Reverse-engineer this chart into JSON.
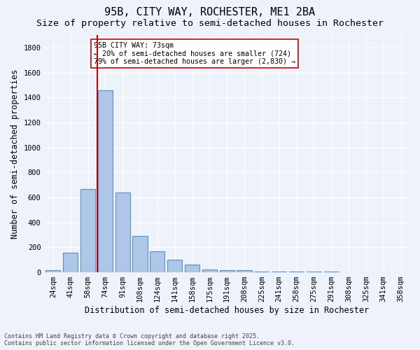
{
  "title1": "95B, CITY WAY, ROCHESTER, ME1 2BA",
  "title2": "Size of property relative to semi-detached houses in Rochester",
  "xlabel": "Distribution of semi-detached houses by size in Rochester",
  "ylabel": "Number of semi-detached properties",
  "categories": [
    "24sqm",
    "41sqm",
    "58sqm",
    "74sqm",
    "91sqm",
    "108sqm",
    "124sqm",
    "141sqm",
    "158sqm",
    "175sqm",
    "191sqm",
    "208sqm",
    "225sqm",
    "241sqm",
    "258sqm",
    "275sqm",
    "291sqm",
    "308sqm",
    "325sqm",
    "341sqm",
    "358sqm"
  ],
  "values": [
    20,
    160,
    670,
    1460,
    640,
    290,
    170,
    100,
    60,
    25,
    20,
    15,
    5,
    5,
    5,
    5,
    5,
    2,
    2,
    2,
    2
  ],
  "bar_color": "#aec6e8",
  "bar_edge_color": "#5a8fc0",
  "vline_color": "#cc0000",
  "vline_label": "95B CITY WAY: 73sqm",
  "annotation_smaller": "← 20% of semi-detached houses are smaller (724)",
  "annotation_larger": "79% of semi-detached houses are larger (2,830) →",
  "ylim": [
    0,
    1900
  ],
  "yticks": [
    0,
    200,
    400,
    600,
    800,
    1000,
    1200,
    1400,
    1600,
    1800
  ],
  "footnote1": "Contains HM Land Registry data © Crown copyright and database right 2025.",
  "footnote2": "Contains public sector information licensed under the Open Government Licence v3.0.",
  "bg_color": "#eef2fb",
  "grid_color": "#ffffff",
  "title_fontsize": 11,
  "subtitle_fontsize": 9.5,
  "axis_label_fontsize": 8.5,
  "tick_fontsize": 7.5
}
